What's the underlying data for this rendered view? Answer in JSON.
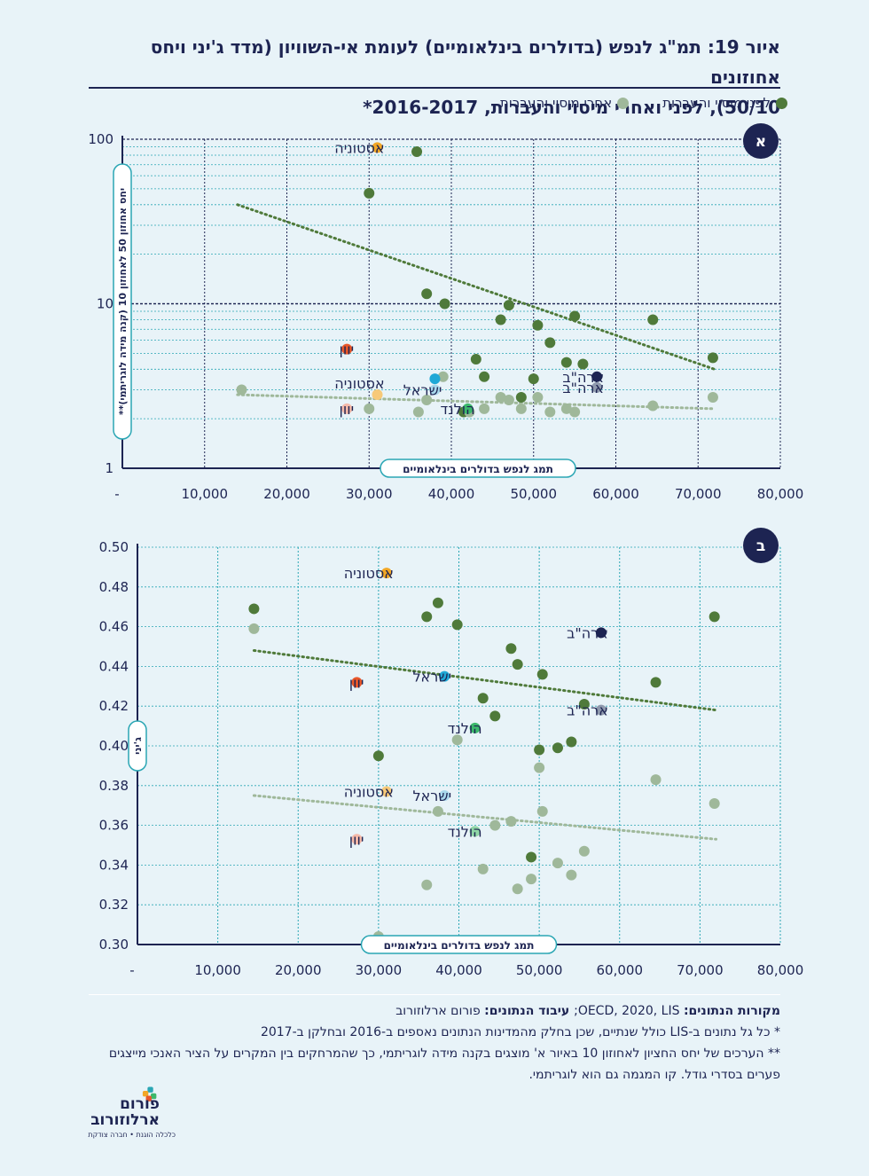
{
  "title": {
    "line1": "איור 19: תמ\"ג לנפש (בדולרים בינלאומיים) לעומת אי-השוויון (מדד ג'יני ויחס אחוזונים",
    "line2": "50/10), לפני ואחרי מיסוי והעברות, 2016-2017*"
  },
  "legend": {
    "before": {
      "label": "לפני מיסוי והעברות",
      "color": "#4f7a3a"
    },
    "after": {
      "label": "אחרי מיסוי והעברות",
      "color": "#9fb89a"
    }
  },
  "colors": {
    "axis": "#1d2452",
    "grid": "#2aa6b4",
    "estonia": "#f2a726",
    "estonia_after": "#f7c978",
    "israel": "#1fa8d6",
    "israel_after": "#a8d8ec",
    "greece": "#e8572a",
    "greece_after": "#f4b8a8",
    "netherlands": "#3cb86c",
    "netherlands_after": "#8fd6a6",
    "usa": "#1d2452",
    "usa_after": "#8e99ad"
  },
  "chart_data": [
    {
      "id": "a",
      "badge": "א",
      "type": "scatter",
      "yscale": "log",
      "ylabel": "יחס אחוזון 50 לאחוזון 10 (קנה מידה לוגריתמי)**",
      "xlabel": "תמג לנפש בדולרים בינלאומיים",
      "xlim": [
        0,
        80000
      ],
      "ylim": [
        1,
        100
      ],
      "xticks": [
        "-",
        "10,000",
        "20,000",
        "30,000",
        "40,000",
        "50,000",
        "60,000",
        "70,000",
        "80,000"
      ],
      "yticks": [
        "1",
        "10",
        "100"
      ],
      "series": [
        {
          "name": "לפני מיסוי והעברות",
          "points": [
            [
              35800,
              84
            ],
            [
              30000,
              47
            ],
            [
              37000,
              11.5
            ],
            [
              39200,
              10
            ],
            [
              47000,
              9.8
            ],
            [
              46000,
              8
            ],
            [
              50500,
              7.4
            ],
            [
              55000,
              8.4
            ],
            [
              64500,
              8
            ],
            [
              52000,
              5.8
            ],
            [
              54000,
              4.4
            ],
            [
              43000,
              4.6
            ],
            [
              56000,
              4.3
            ],
            [
              44000,
              3.6
            ],
            [
              50000,
              3.5
            ],
            [
              48500,
              2.7
            ],
            [
              71800,
              4.7
            ],
            [
              41500,
              2.2
            ]
          ]
        },
        {
          "name": "אחרי מיסוי והעברות",
          "points": [
            [
              14500,
              3.0
            ],
            [
              30000,
              2.3
            ],
            [
              37000,
              2.6
            ],
            [
              39000,
              3.6
            ],
            [
              36000,
              2.2
            ],
            [
              42200,
              2.2
            ],
            [
              44000,
              2.3
            ],
            [
              46000,
              2.7
            ],
            [
              47000,
              2.6
            ],
            [
              48500,
              2.3
            ],
            [
              50500,
              2.7
            ],
            [
              52000,
              2.2
            ],
            [
              54000,
              2.3
            ],
            [
              55000,
              2.2
            ],
            [
              64500,
              2.4
            ],
            [
              71800,
              2.7
            ]
          ]
        },
        {
          "name": "אסטוניה",
          "role": "estonia",
          "points": [
            [
              31000,
              89
            ]
          ]
        },
        {
          "name": "אסטוניה",
          "role": "estonia_after",
          "points": [
            [
              31000,
              2.8
            ]
          ]
        },
        {
          "name": "יוון",
          "role": "greece",
          "points": [
            [
              27300,
              5.3
            ]
          ]
        },
        {
          "name": "יוון",
          "role": "greece_after",
          "points": [
            [
              27300,
              2.3
            ]
          ]
        },
        {
          "name": "ישראל",
          "role": "israel",
          "points": [
            [
              38000,
              3.5
            ]
          ]
        },
        {
          "name": "ישראל",
          "role": "israel_after",
          "points": [
            [
              38000,
              3.0
            ]
          ]
        },
        {
          "name": "הולנד",
          "role": "netherlands",
          "points": [
            [
              42000,
              2.3
            ]
          ]
        },
        {
          "name": "ארה\"ב",
          "role": "usa",
          "points": [
            [
              57700,
              3.6
            ]
          ]
        },
        {
          "name": "ארה\"ב",
          "role": "usa_after",
          "points": [
            [
              57700,
              3.1
            ]
          ]
        }
      ],
      "labels": [
        {
          "text": "אסטוניה",
          "x": 31000,
          "y": 89
        },
        {
          "text": "יוון",
          "x": 27300,
          "y": 5.3
        },
        {
          "text": "אסטוניה",
          "x": 31000,
          "y": 3.3
        },
        {
          "text": "ישראל",
          "x": 38000,
          "y": 3.0
        },
        {
          "text": "יוון",
          "x": 27300,
          "y": 2.3
        },
        {
          "text": "הולנד",
          "x": 42000,
          "y": 2.3
        },
        {
          "text": "ארה\"ב",
          "x": 57700,
          "y": 3.6
        },
        {
          "text": "ארה\"ב",
          "x": 57700,
          "y": 3.1
        }
      ],
      "trends": [
        {
          "role": "before",
          "x1": 14000,
          "y1": 40,
          "x2": 72000,
          "y2": 4.0
        },
        {
          "role": "after",
          "x1": 14000,
          "y1": 2.8,
          "x2": 72000,
          "y2": 2.3
        }
      ]
    },
    {
      "id": "b",
      "badge": "ב",
      "type": "scatter",
      "yscale": "linear",
      "ylabel": "ג'יני",
      "xlabel": "תמג לנפש בדולרים בינלאומיים",
      "xlim": [
        0,
        80000
      ],
      "ylim": [
        0.3,
        0.5
      ],
      "xticks": [
        "-",
        "10,000",
        "20,000",
        "30,000",
        "40,000",
        "50,000",
        "60,000",
        "70,000",
        "80,000"
      ],
      "yticks": [
        "0.30",
        "0.32",
        "0.34",
        "0.36",
        "0.38",
        "0.40",
        "0.42",
        "0.44",
        "0.46",
        "0.48",
        "0.50"
      ],
      "series": [
        {
          "name": "לפני מיסוי והעברות",
          "points": [
            [
              14500,
              0.469
            ],
            [
              36000,
              0.465
            ],
            [
              37400,
              0.472
            ],
            [
              39800,
              0.461
            ],
            [
              46500,
              0.449
            ],
            [
              47300,
              0.441
            ],
            [
              50400,
              0.436
            ],
            [
              43000,
              0.424
            ],
            [
              44500,
              0.415
            ],
            [
              55600,
              0.421
            ],
            [
              64500,
              0.432
            ],
            [
              71800,
              0.465
            ],
            [
              50000,
              0.398
            ],
            [
              52300,
              0.399
            ],
            [
              54000,
              0.402
            ],
            [
              30000,
              0.395
            ],
            [
              49000,
              0.344
            ]
          ]
        },
        {
          "name": "אחרי מיסוי והעברות",
          "points": [
            [
              14500,
              0.459
            ],
            [
              30000,
              0.304
            ],
            [
              36000,
              0.33
            ],
            [
              37400,
              0.367
            ],
            [
              39800,
              0.403
            ],
            [
              42000,
              0.357
            ],
            [
              43000,
              0.338
            ],
            [
              44500,
              0.36
            ],
            [
              46500,
              0.362
            ],
            [
              47300,
              0.328
            ],
            [
              49000,
              0.333
            ],
            [
              50000,
              0.389
            ],
            [
              50400,
              0.367
            ],
            [
              52300,
              0.341
            ],
            [
              54000,
              0.335
            ],
            [
              55600,
              0.347
            ],
            [
              64500,
              0.383
            ],
            [
              71800,
              0.371
            ]
          ]
        },
        {
          "name": "אסטוניה",
          "role": "estonia",
          "points": [
            [
              31000,
              0.487
            ]
          ]
        },
        {
          "name": "אסטוניה",
          "role": "estonia_after",
          "points": [
            [
              31000,
              0.377
            ]
          ]
        },
        {
          "name": "יוון",
          "role": "greece",
          "points": [
            [
              27300,
              0.432
            ]
          ]
        },
        {
          "name": "יוון",
          "role": "greece_after",
          "points": [
            [
              27300,
              0.353
            ]
          ]
        },
        {
          "name": "ישראל",
          "role": "israel",
          "points": [
            [
              38200,
              0.435
            ]
          ]
        },
        {
          "name": "ישראל",
          "role": "israel_after",
          "points": [
            [
              38200,
              0.375
            ]
          ]
        },
        {
          "name": "הולנד",
          "role": "netherlands",
          "points": [
            [
              42000,
              0.409
            ]
          ]
        },
        {
          "name": "הולנד",
          "role": "netherlands_after",
          "points": [
            [
              42000,
              0.357
            ]
          ]
        },
        {
          "name": "ארה\"ב",
          "role": "usa",
          "points": [
            [
              57700,
              0.457
            ]
          ]
        },
        {
          "name": "ארה\"ב",
          "role": "usa_after",
          "points": [
            [
              57700,
              0.418
            ]
          ]
        }
      ],
      "labels": [
        {
          "text": "אסטוניה",
          "x": 31000,
          "y": 0.487
        },
        {
          "text": "ארה\"ב",
          "x": 57700,
          "y": 0.457
        },
        {
          "text": "ישראל",
          "x": 38200,
          "y": 0.435
        },
        {
          "text": "יוון",
          "x": 27300,
          "y": 0.432
        },
        {
          "text": "ארה\"ב",
          "x": 57700,
          "y": 0.418
        },
        {
          "text": "הולנד",
          "x": 42000,
          "y": 0.409
        },
        {
          "text": "אסטוניה",
          "x": 31000,
          "y": 0.377
        },
        {
          "text": "ישראל",
          "x": 38200,
          "y": 0.375
        },
        {
          "text": "הולנד",
          "x": 42000,
          "y": 0.357
        },
        {
          "text": "יוון",
          "x": 27300,
          "y": 0.353
        }
      ],
      "trends": [
        {
          "role": "before",
          "x1": 14500,
          "y1": 0.448,
          "x2": 72000,
          "y2": 0.418
        },
        {
          "role": "after",
          "x1": 14500,
          "y1": 0.375,
          "x2": 72000,
          "y2": 0.353
        }
      ]
    }
  ],
  "notes": {
    "sources_label": "מקורות הנתונים:",
    "sources_text": " OECD, 2020, LIS;",
    "processing_label": " עיבוד הנתונים:",
    "processing_text": " פורום ארלוזורוב",
    "note1": "* כל גל נתונים ב-LIS כולל שנתיים, שכן בחלק מהמדינות הנתונים נאספים ב-2016 ובחלקן ב-2017",
    "note2": "** הערכים של יחס החציון לאחוזון 10 באיור א' מוצגים בקנה מידה לוגריתמי, כך שהמרחקים בין המקרים על הציר האנכי מייצגים פערים בסדרי גודל. קו המגמה גם הוא לוגריתמי."
  },
  "logo": {
    "name": "פורום ארלוזורוב",
    "tagline": "כלכלה הוגנת • חברה צודקת"
  }
}
